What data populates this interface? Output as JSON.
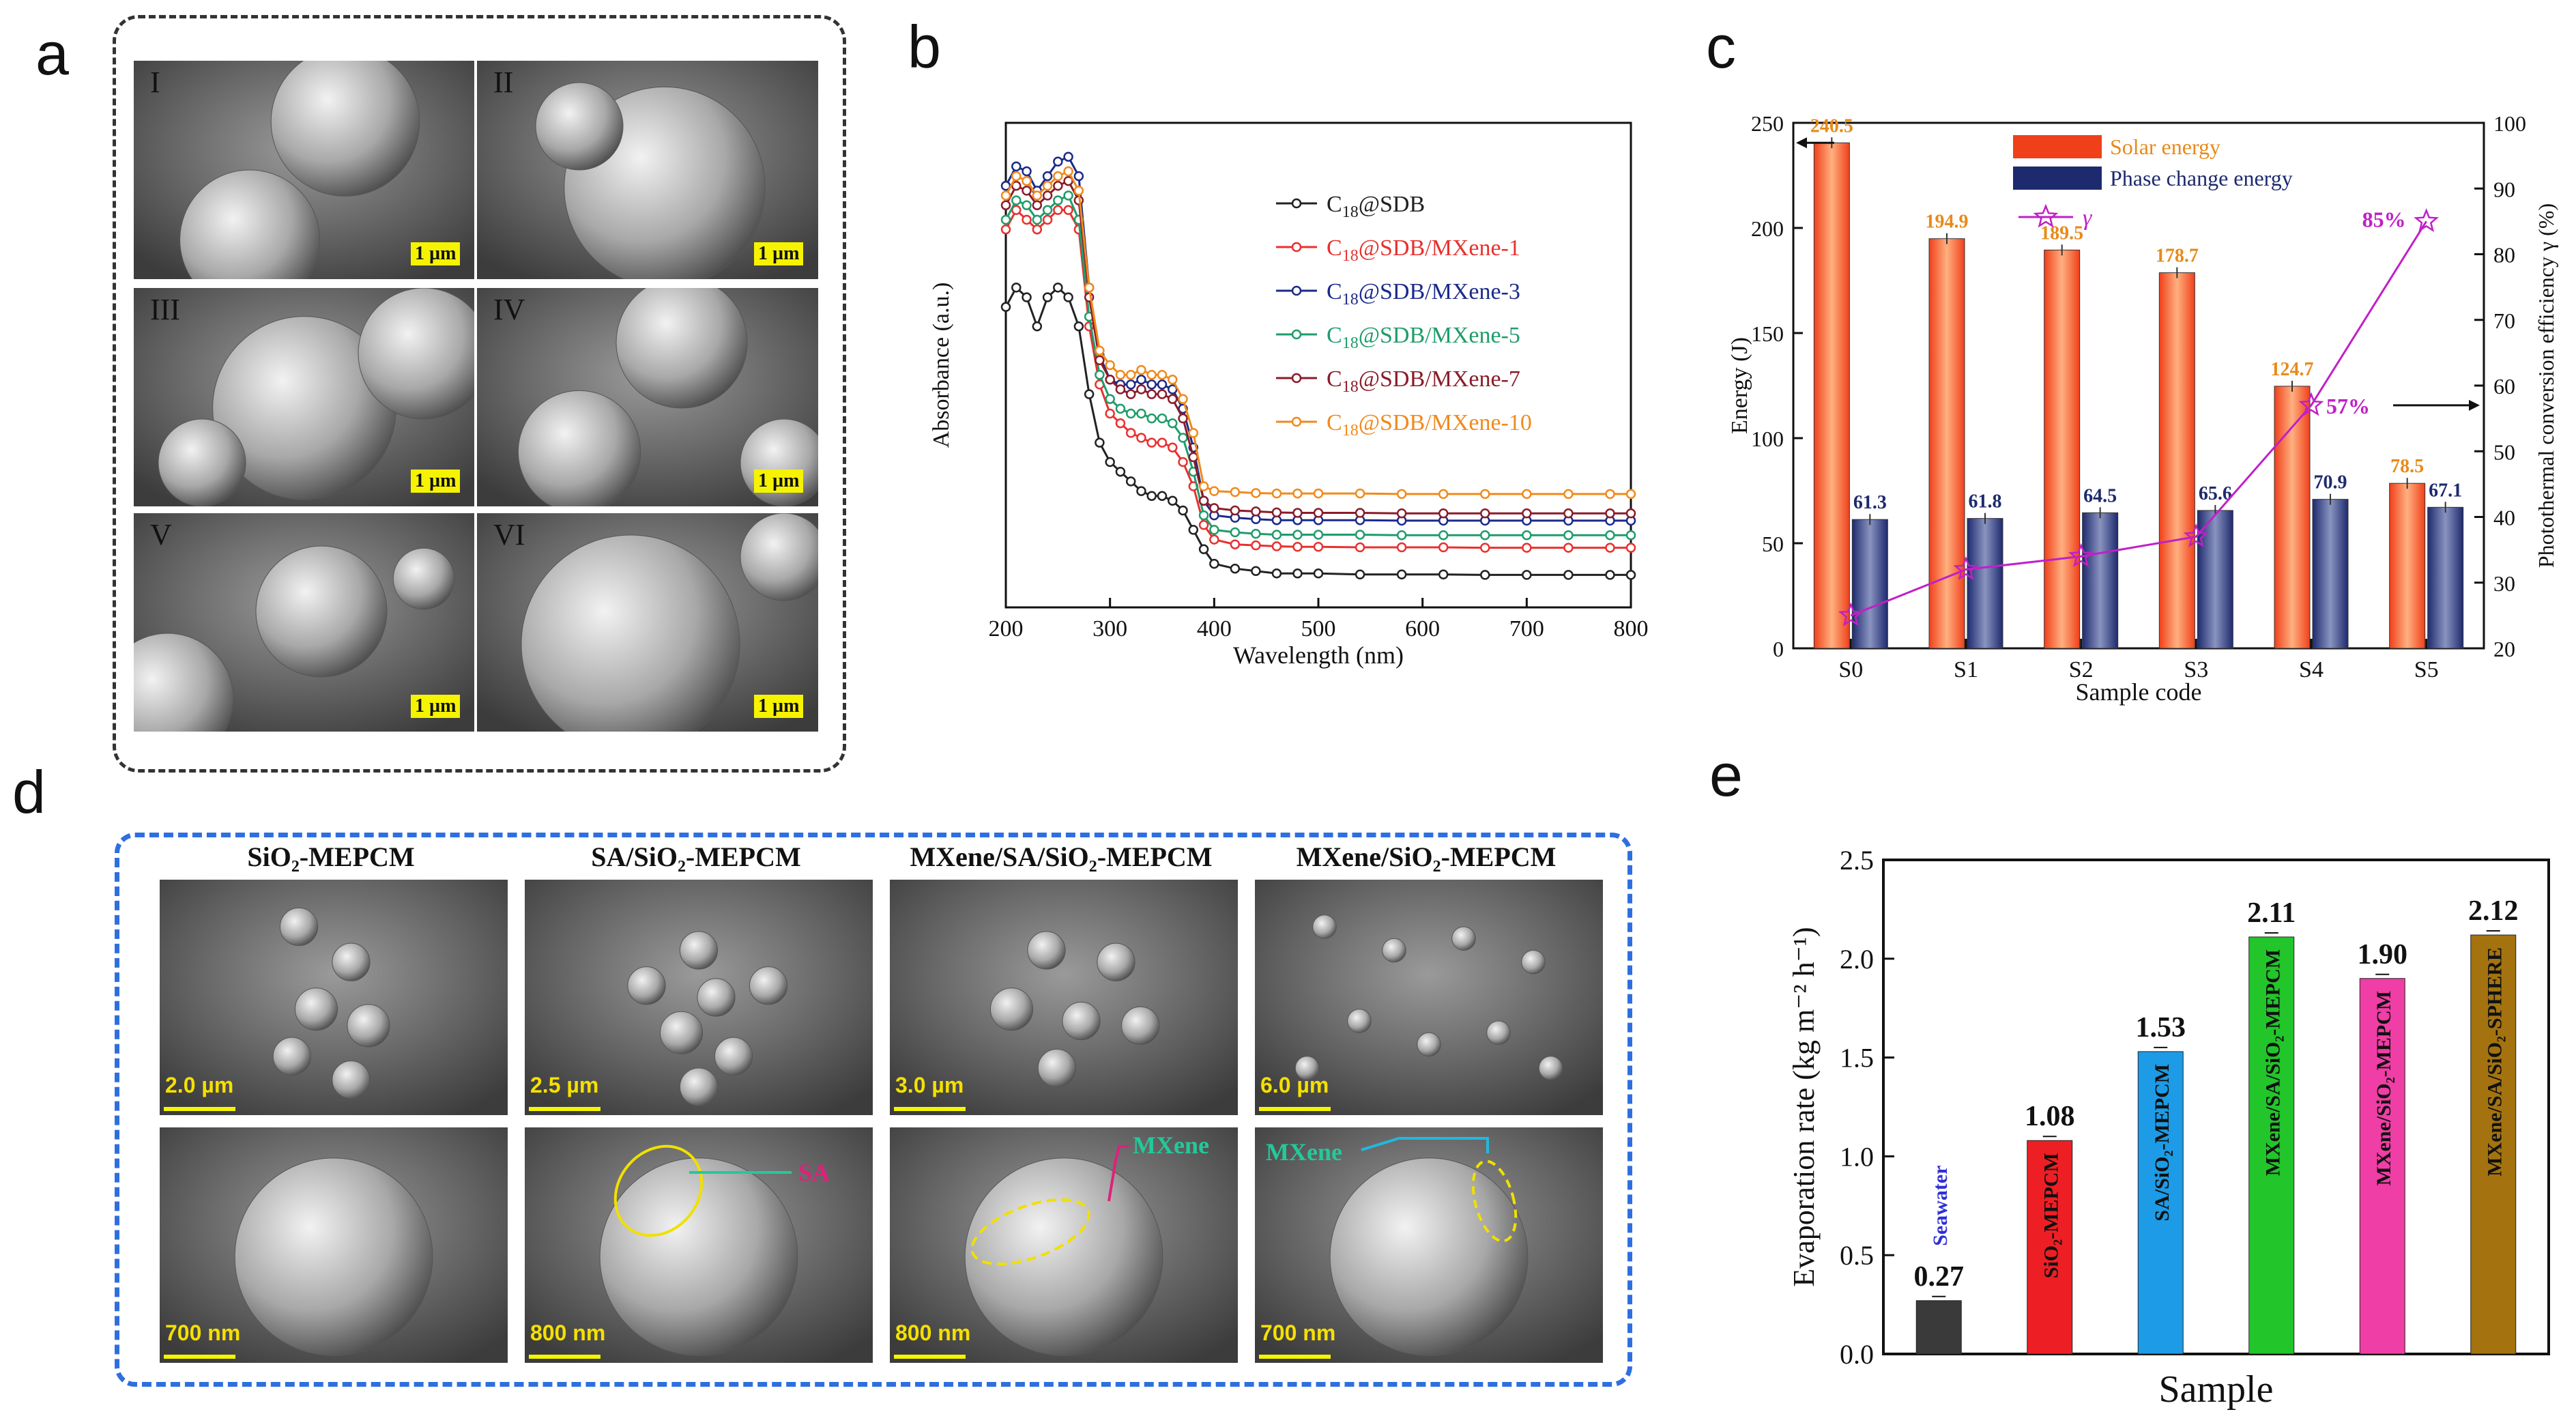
{
  "panel_a": {
    "letter": "a",
    "images": [
      {
        "roman": "I",
        "scale": "1 µm"
      },
      {
        "roman": "II",
        "scale": "1 µm"
      },
      {
        "roman": "III",
        "scale": "1 µm"
      },
      {
        "roman": "IV",
        "scale": "1 µm"
      },
      {
        "roman": "V",
        "scale": "1 µm"
      },
      {
        "roman": "VI",
        "scale": "1 µm"
      }
    ]
  },
  "panel_d": {
    "letter": "d",
    "titles": [
      "SiO₂-MEPCM",
      "SA/SiO₂-MEPCM",
      "MXene/SA/SiO₂-MEPCM",
      "MXene/SiO₂-MEPCM"
    ],
    "top_scales": [
      "2.0 µm",
      "2.5 µm",
      "3.0 µm",
      "6.0 µm"
    ],
    "bottom_scales": [
      "700 nm",
      "800 nm",
      "800 nm",
      "700 nm"
    ],
    "annotations": {
      "sa": "SA",
      "mxene1": "MXene",
      "mxene2": "MXene"
    },
    "colors": {
      "sa": "#e0207a",
      "mxene": "#23c99a",
      "ellipse": "#f0e000",
      "border": "#2e6fe0"
    }
  },
  "chart_data": [
    {
      "id": "b",
      "letter": "b",
      "type": "line",
      "xlabel": "Wavelength (nm)",
      "ylabel": "Absorbance (a.u.)",
      "xlim": [
        200,
        800
      ],
      "ylim": [
        0,
        1
      ],
      "xticks": [
        200,
        300,
        400,
        500,
        600,
        700,
        800
      ],
      "x": [
        200,
        210,
        220,
        230,
        240,
        250,
        260,
        270,
        280,
        290,
        300,
        310,
        320,
        330,
        340,
        350,
        360,
        370,
        380,
        390,
        400,
        420,
        440,
        460,
        480,
        500,
        540,
        580,
        620,
        660,
        700,
        740,
        780,
        800
      ],
      "series": [
        {
          "name": "C18@SDB",
          "sub": "18",
          "suffix": "@SDB",
          "color": "#222222",
          "values": [
            0.62,
            0.66,
            0.64,
            0.58,
            0.64,
            0.66,
            0.64,
            0.58,
            0.44,
            0.34,
            0.3,
            0.28,
            0.26,
            0.24,
            0.23,
            0.23,
            0.22,
            0.2,
            0.16,
            0.12,
            0.09,
            0.08,
            0.075,
            0.07,
            0.07,
            0.07,
            0.068,
            0.068,
            0.068,
            0.067,
            0.067,
            0.067,
            0.067,
            0.067
          ]
        },
        {
          "name": "C18@SDB/MXene-1",
          "sub": "18",
          "suffix": "@SDB/MXene-1",
          "color": "#e8312f",
          "values": [
            0.78,
            0.82,
            0.8,
            0.78,
            0.8,
            0.82,
            0.82,
            0.78,
            0.58,
            0.46,
            0.4,
            0.38,
            0.36,
            0.35,
            0.34,
            0.34,
            0.33,
            0.3,
            0.25,
            0.17,
            0.14,
            0.13,
            0.128,
            0.126,
            0.125,
            0.125,
            0.124,
            0.124,
            0.124,
            0.123,
            0.123,
            0.123,
            0.123,
            0.123
          ]
        },
        {
          "name": "C18@SDB/MXene-3",
          "sub": "18",
          "suffix": "@SDB/MXene-3",
          "color": "#1c2a8a",
          "values": [
            0.87,
            0.91,
            0.9,
            0.86,
            0.89,
            0.92,
            0.93,
            0.89,
            0.66,
            0.52,
            0.47,
            0.46,
            0.46,
            0.47,
            0.46,
            0.46,
            0.45,
            0.41,
            0.33,
            0.22,
            0.19,
            0.185,
            0.182,
            0.18,
            0.18,
            0.18,
            0.18,
            0.179,
            0.179,
            0.179,
            0.179,
            0.179,
            0.179,
            0.179
          ]
        },
        {
          "name": "C18@SDB/MXene-5",
          "sub": "18",
          "suffix": "@SDB/MXene-5",
          "color": "#1f9c6b",
          "values": [
            0.8,
            0.84,
            0.83,
            0.8,
            0.82,
            0.84,
            0.85,
            0.8,
            0.6,
            0.48,
            0.43,
            0.41,
            0.4,
            0.4,
            0.39,
            0.39,
            0.38,
            0.35,
            0.28,
            0.19,
            0.16,
            0.155,
            0.152,
            0.15,
            0.15,
            0.15,
            0.15,
            0.149,
            0.149,
            0.149,
            0.149,
            0.149,
            0.149,
            0.149
          ]
        },
        {
          "name": "C18@SDB/MXene-7",
          "sub": "18",
          "suffix": "@SDB/MXene-7",
          "color": "#8a1c2a",
          "values": [
            0.83,
            0.87,
            0.86,
            0.83,
            0.85,
            0.87,
            0.88,
            0.84,
            0.64,
            0.51,
            0.47,
            0.45,
            0.44,
            0.45,
            0.44,
            0.44,
            0.43,
            0.39,
            0.31,
            0.22,
            0.205,
            0.2,
            0.198,
            0.196,
            0.195,
            0.195,
            0.195,
            0.194,
            0.194,
            0.194,
            0.194,
            0.194,
            0.194,
            0.194
          ]
        },
        {
          "name": "C18@SDB/MXene-10",
          "sub": "18",
          "suffix": "@SDB/MXene-10",
          "color": "#f08a1c",
          "values": [
            0.85,
            0.89,
            0.88,
            0.85,
            0.87,
            0.89,
            0.9,
            0.86,
            0.66,
            0.53,
            0.5,
            0.48,
            0.48,
            0.49,
            0.48,
            0.48,
            0.47,
            0.43,
            0.36,
            0.25,
            0.24,
            0.238,
            0.236,
            0.235,
            0.235,
            0.235,
            0.235,
            0.234,
            0.234,
            0.234,
            0.234,
            0.234,
            0.234,
            0.234
          ]
        }
      ]
    },
    {
      "id": "c",
      "letter": "c",
      "type": "bar",
      "xlabel": "Sample code",
      "ylabel": "Energy (J)",
      "y2label": "Photothermal conversion efficiency γ (%)",
      "categories": [
        "S0",
        "S1",
        "S2",
        "S3",
        "S4",
        "S5"
      ],
      "ylim": [
        0,
        250
      ],
      "yticks": [
        0,
        50,
        100,
        150,
        200,
        250
      ],
      "y2lim": [
        20,
        100
      ],
      "y2ticks": [
        20,
        30,
        40,
        50,
        60,
        70,
        80,
        90,
        100
      ],
      "series": [
        {
          "name": "Solar energy",
          "color": "#f0401a",
          "values": [
            240.5,
            194.9,
            189.5,
            178.7,
            124.7,
            78.5
          ],
          "labels": [
            "240.5",
            "194.9",
            "189.5",
            "178.7",
            "124.7",
            "78.5"
          ],
          "label_color": "#e88a1a"
        },
        {
          "name": "Phase change energy",
          "color": "#1e2a6e",
          "values": [
            61.3,
            61.8,
            64.5,
            65.6,
            70.9,
            67.1
          ],
          "labels": [
            "61.3",
            "61.8",
            "64.5",
            "65.6",
            "70.9",
            "67.1"
          ],
          "label_color": "#1e2a6e"
        }
      ],
      "efficiency": {
        "name": "γ",
        "color": "#c020c8",
        "values": [
          25,
          32,
          34,
          37,
          57,
          85
        ]
      },
      "annotations": [
        "85%",
        "57%"
      ]
    },
    {
      "id": "e",
      "letter": "e",
      "type": "bar",
      "xlabel": "Sample",
      "ylabel": "Evaporation rate (kg m⁻² h⁻¹)",
      "ylim": [
        0,
        2.5
      ],
      "yticks": [
        "0.0",
        "0.5",
        "1.0",
        "1.5",
        "2.0",
        "2.5"
      ],
      "categories": [
        "Seawater",
        "SiO₂-MEPCM",
        "SA/SiO₂-MEPCM",
        "MXene/SA/SiO₂-MEPCM",
        "MXene/SiO₂-MEPCM",
        "MXene/SA/SiO₂-SPHERE"
      ],
      "values": [
        0.27,
        1.08,
        1.53,
        2.11,
        1.9,
        2.12
      ],
      "labels": [
        "0.27",
        "1.08",
        "1.53",
        "2.11",
        "1.90",
        "2.12"
      ],
      "colors": [
        "#3a3a3a",
        "#ee1f24",
        "#1d9be6",
        "#22c52a",
        "#ef3ea5",
        "#a4730f"
      ],
      "seawater_color": "#2f2fd6"
    }
  ]
}
